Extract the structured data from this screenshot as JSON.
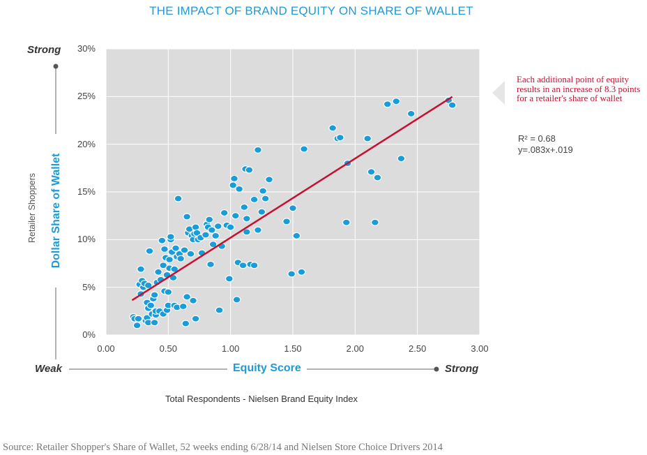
{
  "chart_data": {
    "type": "scatter",
    "title": "THE IMPACT OF BRAND EQUITY ON SHARE OF WALLET",
    "xlabel": "Equity Score",
    "x_sublabel": "Total Respondents - Nielsen Brand Equity Index",
    "ylabel": "Dollar Share of Wallet",
    "y_sublabel": "Retailer Shoppers",
    "xlim": [
      0,
      3
    ],
    "ylim": [
      0,
      0.3
    ],
    "x_ticks": [
      "0.00",
      "0.50",
      "1.00",
      "1.50",
      "2.00",
      "2.50",
      "3.00"
    ],
    "y_ticks": [
      "0%",
      "5%",
      "10%",
      "15%",
      "20%",
      "25%",
      "30%"
    ],
    "y_axis_ends": {
      "top": "Strong",
      "bottom": "Weak"
    },
    "x_axis_ends": {
      "left": "Weak",
      "right": "Strong"
    },
    "grid": true,
    "colors": {
      "points": "#1a9cd8",
      "trendline": "#c8102e",
      "plot_background": "#dcdcdc",
      "title": "#1d9bd7"
    },
    "trendline": {
      "slope": 0.083,
      "intercept": 0.019,
      "x_range": [
        0.21,
        2.78
      ]
    },
    "annotation": "Each additional point of equity results in an increase of 8.3 points for a retailer's share of wallet",
    "r_squared_label": "R² = 0.68",
    "equation_label": "y=.083x+.019",
    "points": [
      [
        0.22,
        0.019
      ],
      [
        0.23,
        0.017
      ],
      [
        0.25,
        0.01
      ],
      [
        0.26,
        0.017
      ],
      [
        0.27,
        0.053
      ],
      [
        0.28,
        0.043
      ],
      [
        0.28,
        0.069
      ],
      [
        0.29,
        0.057
      ],
      [
        0.3,
        0.05
      ],
      [
        0.31,
        0.054
      ],
      [
        0.32,
        0.015
      ],
      [
        0.33,
        0.018
      ],
      [
        0.34,
        0.013
      ],
      [
        0.33,
        0.034
      ],
      [
        0.34,
        0.052
      ],
      [
        0.34,
        0.028
      ],
      [
        0.35,
        0.088
      ],
      [
        0.36,
        0.031
      ],
      [
        0.37,
        0.022
      ],
      [
        0.38,
        0.038
      ],
      [
        0.39,
        0.042
      ],
      [
        0.39,
        0.013
      ],
      [
        0.4,
        0.021
      ],
      [
        0.4,
        0.025
      ],
      [
        0.41,
        0.055
      ],
      [
        0.42,
        0.066
      ],
      [
        0.43,
        0.025
      ],
      [
        0.44,
        0.058
      ],
      [
        0.45,
        0.099
      ],
      [
        0.46,
        0.073
      ],
      [
        0.46,
        0.022
      ],
      [
        0.47,
        0.09
      ],
      [
        0.47,
        0.046
      ],
      [
        0.48,
        0.081
      ],
      [
        0.49,
        0.063
      ],
      [
        0.49,
        0.026
      ],
      [
        0.5,
        0.031
      ],
      [
        0.5,
        0.045
      ],
      [
        0.51,
        0.079
      ],
      [
        0.51,
        0.07
      ],
      [
        0.52,
        0.1
      ],
      [
        0.52,
        0.103
      ],
      [
        0.53,
        0.087
      ],
      [
        0.54,
        0.06
      ],
      [
        0.55,
        0.069
      ],
      [
        0.55,
        0.031
      ],
      [
        0.56,
        0.091
      ],
      [
        0.57,
        0.082
      ],
      [
        0.57,
        0.029
      ],
      [
        0.58,
        0.143
      ],
      [
        0.59,
        0.085
      ],
      [
        0.6,
        0.08
      ],
      [
        0.62,
        0.03
      ],
      [
        0.63,
        0.089
      ],
      [
        0.64,
        0.012
      ],
      [
        0.65,
        0.04
      ],
      [
        0.65,
        0.124
      ],
      [
        0.66,
        0.107
      ],
      [
        0.67,
        0.111
      ],
      [
        0.68,
        0.085
      ],
      [
        0.69,
        0.104
      ],
      [
        0.7,
        0.1
      ],
      [
        0.7,
        0.036
      ],
      [
        0.71,
        0.106
      ],
      [
        0.72,
        0.017
      ],
      [
        0.72,
        0.113
      ],
      [
        0.73,
        0.107
      ],
      [
        0.74,
        0.1
      ],
      [
        0.76,
        0.102
      ],
      [
        0.77,
        0.086
      ],
      [
        0.8,
        0.105
      ],
      [
        0.81,
        0.116
      ],
      [
        0.82,
        0.113
      ],
      [
        0.83,
        0.121
      ],
      [
        0.84,
        0.074
      ],
      [
        0.85,
        0.11
      ],
      [
        0.86,
        0.095
      ],
      [
        0.88,
        0.104
      ],
      [
        0.9,
        0.114
      ],
      [
        0.91,
        0.026
      ],
      [
        0.93,
        0.093
      ],
      [
        0.95,
        0.128
      ],
      [
        0.97,
        0.115
      ],
      [
        0.99,
        0.059
      ],
      [
        1.0,
        0.113
      ],
      [
        1.02,
        0.157
      ],
      [
        1.03,
        0.164
      ],
      [
        1.04,
        0.125
      ],
      [
        1.05,
        0.037
      ],
      [
        1.06,
        0.076
      ],
      [
        1.07,
        0.153
      ],
      [
        1.1,
        0.073
      ],
      [
        1.11,
        0.134
      ],
      [
        1.12,
        0.174
      ],
      [
        1.13,
        0.122
      ],
      [
        1.13,
        0.108
      ],
      [
        1.15,
        0.173
      ],
      [
        1.16,
        0.074
      ],
      [
        1.19,
        0.073
      ],
      [
        1.19,
        0.142
      ],
      [
        1.22,
        0.194
      ],
      [
        1.22,
        0.11
      ],
      [
        1.25,
        0.129
      ],
      [
        1.26,
        0.151
      ],
      [
        1.28,
        0.143
      ],
      [
        1.31,
        0.163
      ],
      [
        1.45,
        0.119
      ],
      [
        1.49,
        0.064
      ],
      [
        1.5,
        0.133
      ],
      [
        1.53,
        0.104
      ],
      [
        1.57,
        0.066
      ],
      [
        1.59,
        0.195
      ],
      [
        1.82,
        0.217
      ],
      [
        1.86,
        0.206
      ],
      [
        1.88,
        0.207
      ],
      [
        1.93,
        0.118
      ],
      [
        1.94,
        0.18
      ],
      [
        2.1,
        0.206
      ],
      [
        2.13,
        0.171
      ],
      [
        2.16,
        0.118
      ],
      [
        2.18,
        0.165
      ],
      [
        2.26,
        0.242
      ],
      [
        2.33,
        0.245
      ],
      [
        2.37,
        0.185
      ],
      [
        2.45,
        0.232
      ],
      [
        2.75,
        0.246
      ],
      [
        2.78,
        0.241
      ]
    ]
  },
  "page": {
    "source": "Source: Retailer Shopper's Share of Wallet, 52 weeks ending 6/28/14 and Nielsen Store Choice Drivers 2014"
  }
}
